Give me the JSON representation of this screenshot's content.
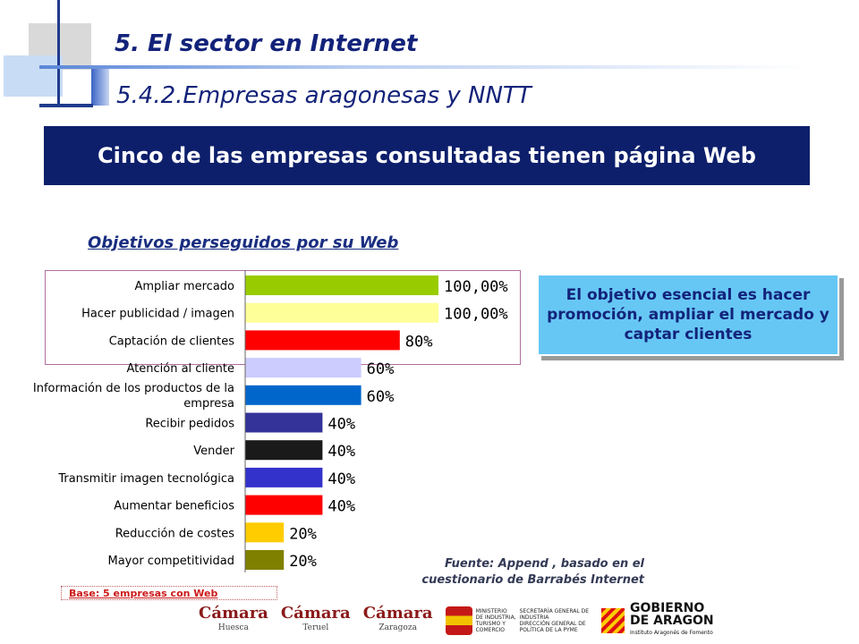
{
  "header": {
    "title": "5. El sector en Internet",
    "subtitle": "5.4.2.Empresas aragonesas y NNTT"
  },
  "banner": {
    "text": "Cinco de las empresas consultadas tienen página Web"
  },
  "callout": {
    "text": "El objetivo esencial es hacer promoción, ampliar el mercado y captar clientes"
  },
  "source": {
    "line1": "Fuente: Append , basado en el",
    "line2": "cuestionario de Barrabés Internet"
  },
  "base": {
    "text": "Base: 5 empresas con Web"
  },
  "logos": {
    "camara1": {
      "name": "Cámara",
      "place": "Huesca"
    },
    "camara2": {
      "name": "Cámara",
      "place": "Teruel"
    },
    "camara3": {
      "name": "Cámara",
      "place": "Zaragoza"
    },
    "ministerio": {
      "left": [
        "MINISTERIO",
        "DE INDUSTRIA,",
        "TURISMO Y",
        "COMERCIO"
      ],
      "right": [
        "SECRETARÍA GENERAL DE",
        "INDUSTRIA",
        "DIRECCIÓN GENERAL DE",
        "POLÍTICA DE LA PYME"
      ]
    },
    "aragon": {
      "line1": "GOBIERNO",
      "line2": "DE ARAGON",
      "small": "Instituto Aragonés de Fomento"
    }
  },
  "chart_data": {
    "type": "bar",
    "orientation": "horizontal",
    "title": "Objetivos perseguidos por su Web",
    "xlim": [
      0,
      100
    ],
    "grid": false,
    "categories": [
      "Ampliar mercado",
      "Hacer publicidad / imagen",
      "Captación de clientes",
      "Atención al cliente",
      "Información de los productos de la empresa",
      "Recibir pedidos",
      "Vender",
      "Transmitir imagen tecnológica",
      "Aumentar beneficios",
      "Reducción de costes",
      "Mayor competitividad"
    ],
    "category_lines": [
      [
        "Ampliar mercado"
      ],
      [
        "Hacer publicidad / imagen"
      ],
      [
        "Captación de clientes"
      ],
      [
        "Atención al cliente"
      ],
      [
        "Información de los productos de la",
        "empresa"
      ],
      [
        "Recibir pedidos"
      ],
      [
        "Vender"
      ],
      [
        "Transmitir imagen tecnológica"
      ],
      [
        "Aumentar beneficios"
      ],
      [
        "Reducción de costes"
      ],
      [
        "Mayor competitividad"
      ]
    ],
    "values": [
      100,
      100,
      80,
      60,
      60,
      40,
      40,
      40,
      40,
      20,
      20
    ],
    "value_labels": [
      "100,00%",
      "100,00%",
      "80%",
      "60%",
      "60%",
      "40%",
      "40%",
      "40%",
      "40%",
      "20%",
      "20%"
    ],
    "colors": [
      "#99cc00",
      "#ffff99",
      "#ff0000",
      "#ccccff",
      "#0066cc",
      "#333399",
      "#1a1a1a",
      "#3333cc",
      "#ff0000",
      "#ffcc00",
      "#808000"
    ]
  }
}
